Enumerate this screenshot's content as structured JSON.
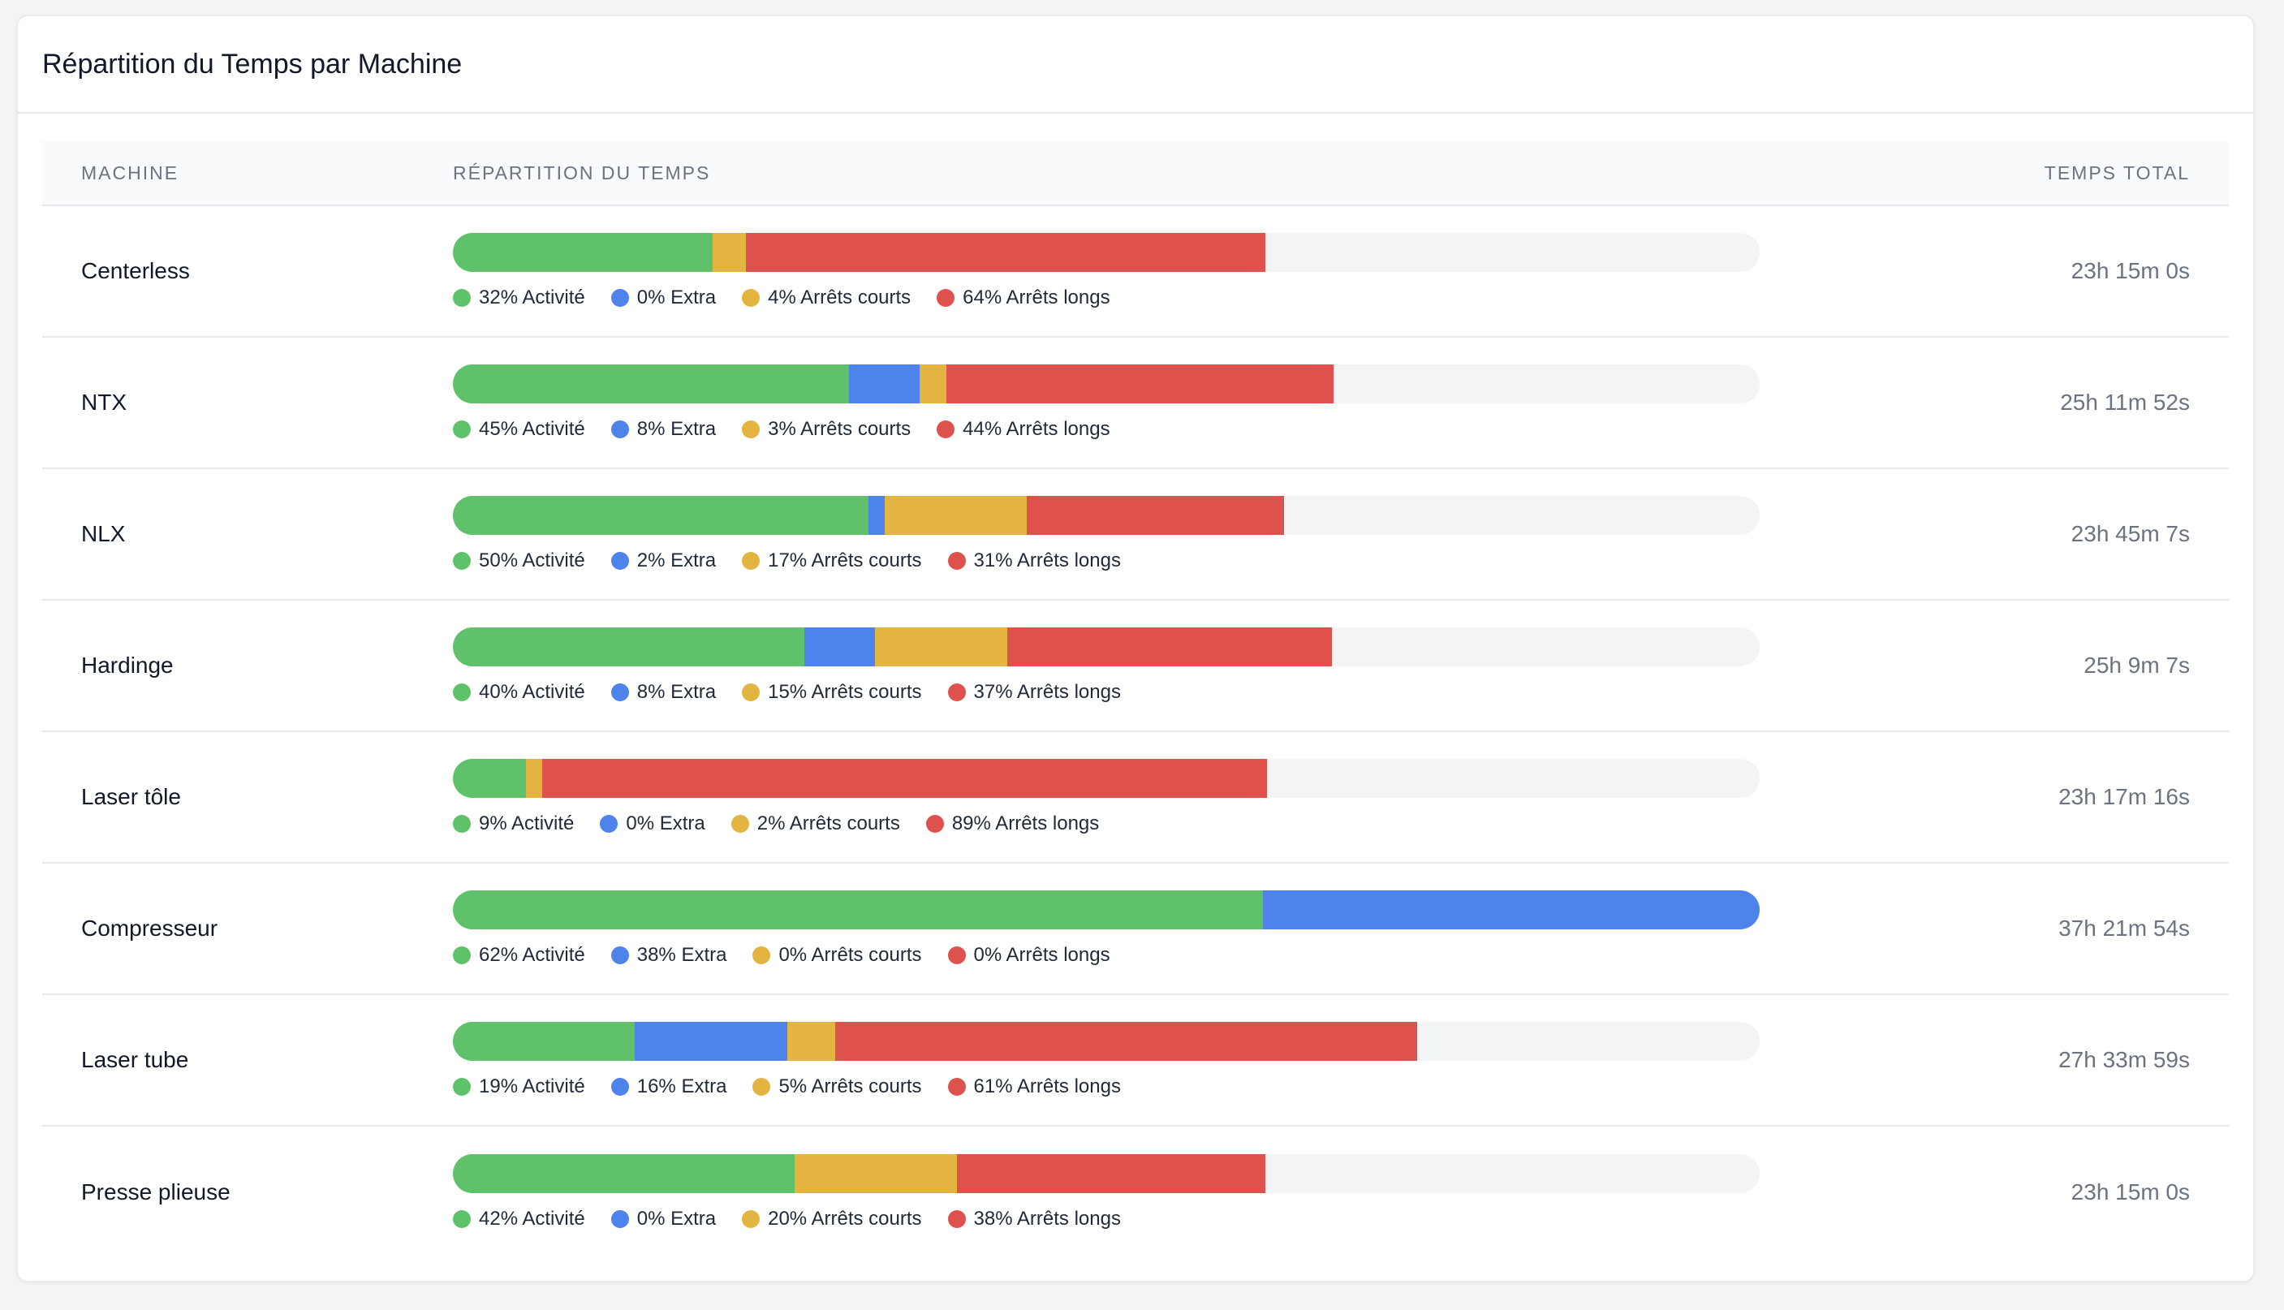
{
  "title": "Répartition du Temps par Machine",
  "table": {
    "headers": {
      "machine": "MACHINE",
      "distribution": "RÉPARTITION DU TEMPS",
      "total": "TEMPS TOTAL"
    }
  },
  "categories": [
    {
      "key": "activite",
      "suffix": "Activité",
      "color": "#5fc26a"
    },
    {
      "key": "extra",
      "suffix": "Extra",
      "color": "#4f83ec"
    },
    {
      "key": "courts",
      "suffix": "Arrêts courts",
      "color": "#e3b43f"
    },
    {
      "key": "longs",
      "suffix": "Arrêts longs",
      "color": "#df514d"
    }
  ],
  "bar_track_color": "#f3f4f6",
  "rows": [
    {
      "name": "Centerless",
      "total": "23h 15m 0s",
      "fill_pct": 62.2,
      "segments": [
        32,
        0,
        4,
        64
      ],
      "labels": [
        "32% Activité",
        "0% Extra",
        "4% Arrêts courts",
        "64% Arrêts longs"
      ]
    },
    {
      "name": "NTX",
      "total": "25h 11m 52s",
      "fill_pct": 67.4,
      "segments": [
        45,
        8,
        3,
        44
      ],
      "labels": [
        "45% Activité",
        "8% Extra",
        "3% Arrêts courts",
        "44% Arrêts longs"
      ]
    },
    {
      "name": "NLX",
      "total": "23h 45m 7s",
      "fill_pct": 63.6,
      "segments": [
        50,
        2,
        17,
        31
      ],
      "labels": [
        "50% Activité",
        "2% Extra",
        "17% Arrêts courts",
        "31% Arrêts longs"
      ]
    },
    {
      "name": "Hardinge",
      "total": "25h 9m 7s",
      "fill_pct": 67.3,
      "segments": [
        40,
        8,
        15,
        37
      ],
      "labels": [
        "40% Activité",
        "8% Extra",
        "15% Arrêts courts",
        "37% Arrêts longs"
      ]
    },
    {
      "name": "Laser tôle",
      "total": "23h 17m 16s",
      "fill_pct": 62.3,
      "segments": [
        9,
        0,
        2,
        89
      ],
      "labels": [
        "9% Activité",
        "0% Extra",
        "2% Arrêts courts",
        "89% Arrêts longs"
      ]
    },
    {
      "name": "Compresseur",
      "total": "37h 21m 54s",
      "fill_pct": 100,
      "segments": [
        62,
        38,
        0,
        0
      ],
      "labels": [
        "62% Activité",
        "38% Extra",
        "0% Arrêts courts",
        "0% Arrêts longs"
      ]
    },
    {
      "name": "Laser tube",
      "total": "27h 33m 59s",
      "fill_pct": 73.8,
      "segments": [
        19,
        16,
        5,
        61
      ],
      "labels": [
        "19% Activité",
        "16% Extra",
        "5% Arrêts courts",
        "61% Arrêts longs"
      ]
    },
    {
      "name": "Presse plieuse",
      "total": "23h 15m 0s",
      "fill_pct": 62.2,
      "segments": [
        42,
        0,
        20,
        38
      ],
      "labels": [
        "42% Activité",
        "0% Extra",
        "20% Arrêts courts",
        "38% Arrêts longs"
      ]
    }
  ]
}
